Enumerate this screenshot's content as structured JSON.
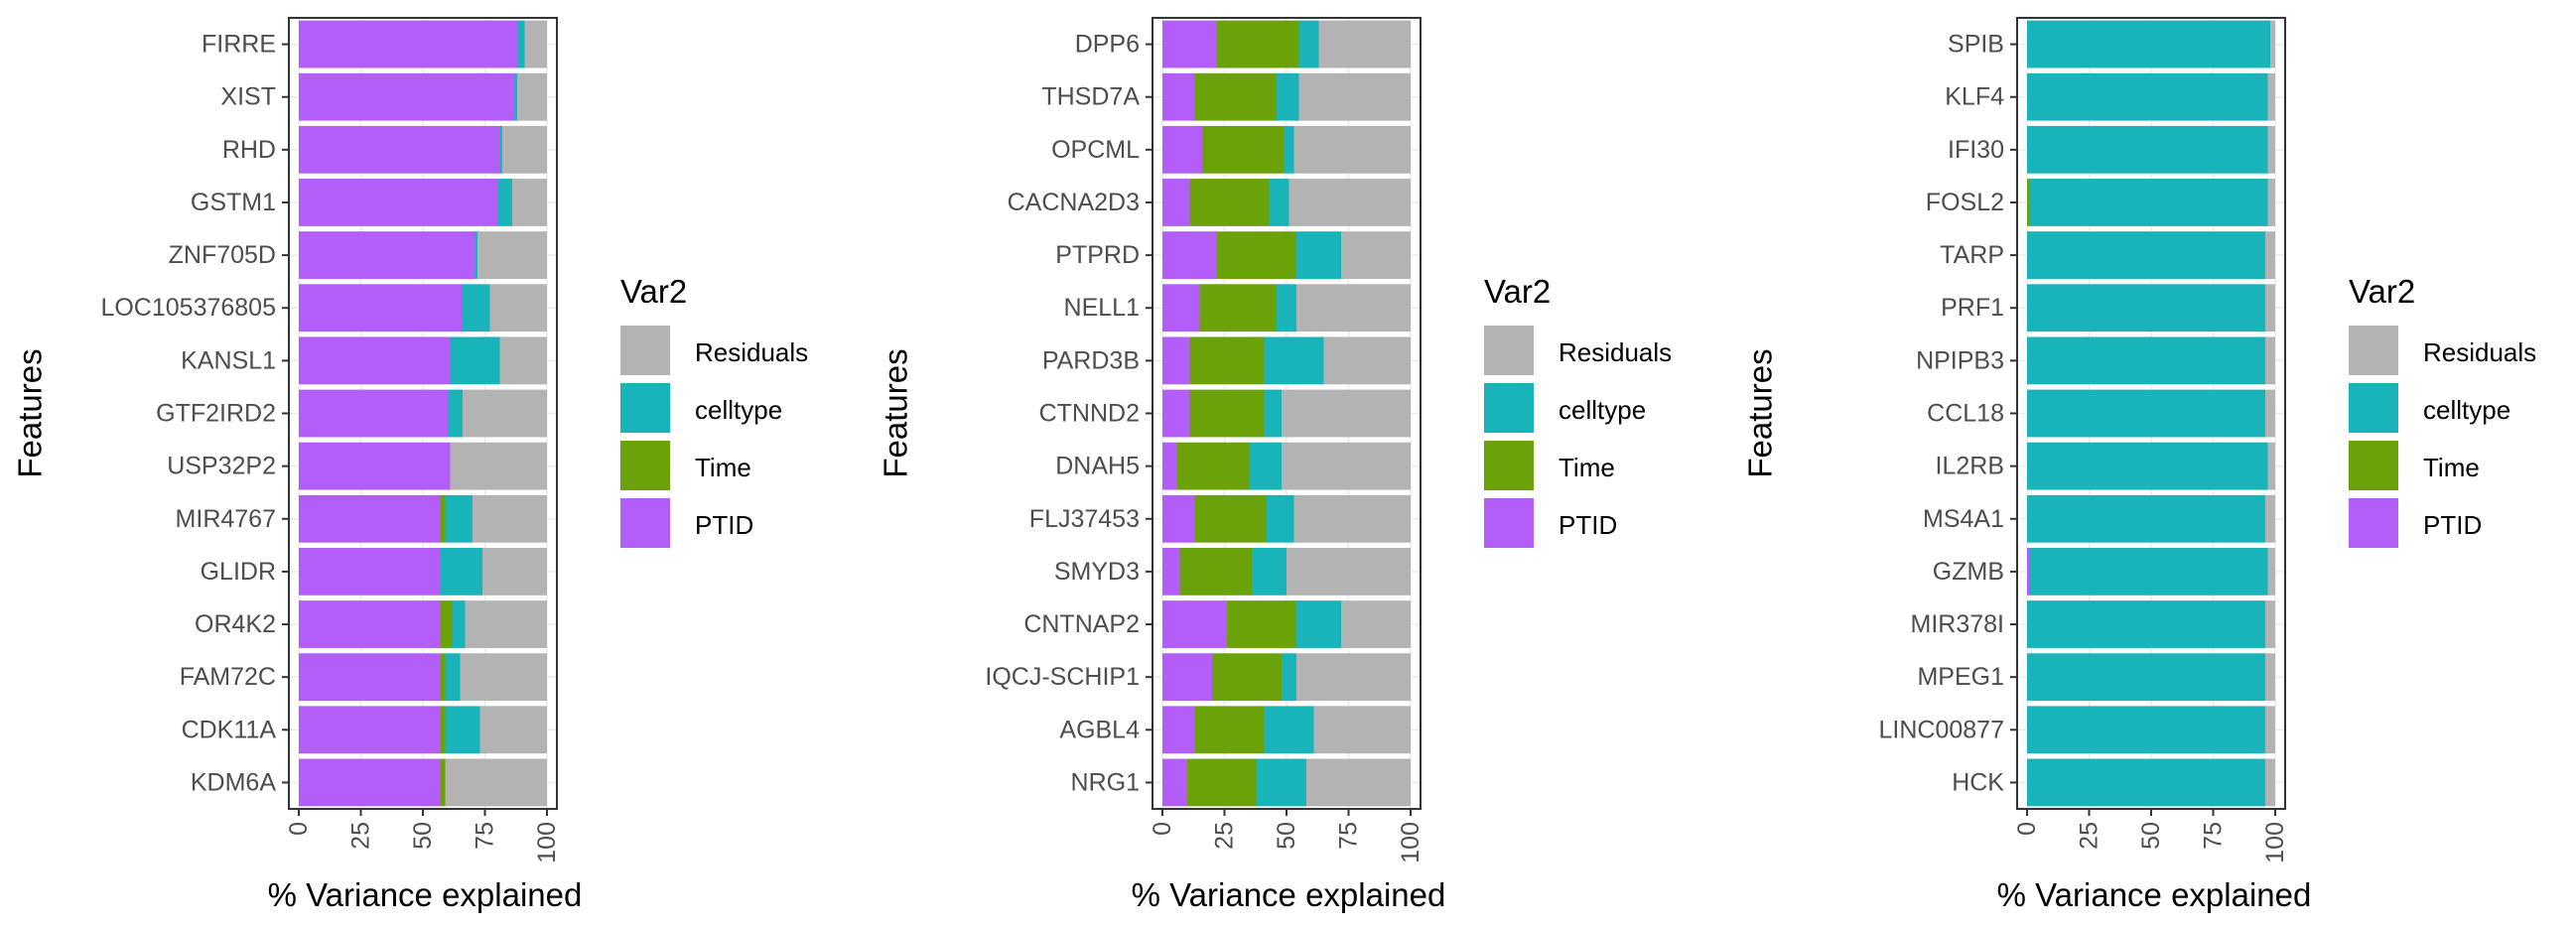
{
  "legend_title": "Var2",
  "legend_entries": [
    {
      "key": "Residuals",
      "label": "Residuals",
      "color": "#B3B3B3"
    },
    {
      "key": "celltype",
      "label": "celltype",
      "color": "#19B4B9"
    },
    {
      "key": "Time",
      "label": "Time",
      "color": "#6BA20A"
    },
    {
      "key": "PTID",
      "label": "PTID",
      "color": "#B45EFA"
    }
  ],
  "stack_order": [
    "PTID",
    "Time",
    "celltype",
    "Residuals"
  ],
  "chart_data": [
    {
      "type": "bar",
      "orientation": "horizontal",
      "stacked": true,
      "xlabel": "% Variance explained",
      "ylabel": "Features",
      "xlim": [
        0,
        100
      ],
      "xticks": [
        "0",
        "25",
        "50",
        "75",
        "100"
      ],
      "legend_position": "right",
      "categories": [
        "FIRRE",
        "XIST",
        "RHD",
        "GSTM1",
        "ZNF705D",
        "LOC105376805",
        "KANSL1",
        "GTF2IRD2",
        "USP32P2",
        "MIR4767",
        "GLIDR",
        "OR4K2",
        "FAM72C",
        "CDK11A",
        "KDM6A"
      ],
      "series": [
        {
          "name": "PTID",
          "values": [
            88,
            87,
            81,
            80,
            71,
            66,
            61,
            60,
            61,
            57,
            57,
            57,
            57,
            57,
            57
          ]
        },
        {
          "name": "Time",
          "values": [
            0,
            0,
            0,
            0,
            0,
            0,
            0,
            0,
            0,
            2,
            0,
            5,
            2,
            2,
            2
          ]
        },
        {
          "name": "celltype",
          "values": [
            3,
            1,
            1,
            6,
            1,
            11,
            20,
            6,
            0,
            11,
            17,
            5,
            6,
            14,
            0
          ]
        },
        {
          "name": "Residuals",
          "values": [
            9,
            12,
            18,
            14,
            28,
            23,
            19,
            34,
            39,
            30,
            26,
            33,
            35,
            27,
            41
          ]
        }
      ]
    },
    {
      "type": "bar",
      "orientation": "horizontal",
      "stacked": true,
      "xlabel": "% Variance explained",
      "ylabel": "Features",
      "xlim": [
        0,
        100
      ],
      "xticks": [
        "0",
        "25",
        "50",
        "75",
        "100"
      ],
      "legend_position": "right",
      "categories": [
        "DPP6",
        "THSD7A",
        "OPCML",
        "CACNA2D3",
        "PTPRD",
        "NELL1",
        "PARD3B",
        "CTNND2",
        "DNAH5",
        "FLJ37453",
        "SMYD3",
        "CNTNAP2",
        "IQCJ-SCHIP1",
        "AGBL4",
        "NRG1"
      ],
      "series": [
        {
          "name": "PTID",
          "values": [
            22,
            13,
            16,
            11,
            22,
            15,
            11,
            11,
            6,
            13,
            7,
            26,
            20,
            13,
            10
          ]
        },
        {
          "name": "Time",
          "values": [
            33,
            33,
            33,
            32,
            32,
            31,
            30,
            30,
            29,
            29,
            29,
            28,
            28,
            28,
            28
          ]
        },
        {
          "name": "celltype",
          "values": [
            8,
            9,
            4,
            8,
            18,
            8,
            24,
            7,
            13,
            11,
            14,
            18,
            6,
            20,
            20
          ]
        },
        {
          "name": "Residuals",
          "values": [
            37,
            45,
            47,
            49,
            28,
            46,
            35,
            52,
            52,
            47,
            50,
            28,
            46,
            39,
            42
          ]
        }
      ]
    },
    {
      "type": "bar",
      "orientation": "horizontal",
      "stacked": true,
      "xlabel": "% Variance explained",
      "ylabel": "Features",
      "xlim": [
        0,
        100
      ],
      "xticks": [
        "0",
        "25",
        "50",
        "75",
        "100"
      ],
      "legend_position": "right",
      "categories": [
        "SPIB",
        "KLF4",
        "IFI30",
        "FOSL2",
        "TARP",
        "PRF1",
        "NPIPB3",
        "CCL18",
        "IL2RB",
        "MS4A1",
        "GZMB",
        "MIR378I",
        "MPEG1",
        "LINC00877",
        "HCK"
      ],
      "series": [
        {
          "name": "PTID",
          "values": [
            0,
            0,
            0,
            0,
            0,
            0,
            0,
            0,
            0,
            0,
            1,
            0,
            0,
            0,
            0
          ]
        },
        {
          "name": "Time",
          "values": [
            0,
            0,
            0,
            1,
            0,
            0,
            0,
            0,
            0,
            0,
            0,
            0,
            0,
            0,
            0
          ]
        },
        {
          "name": "celltype",
          "values": [
            98,
            97,
            97,
            96,
            96,
            96,
            96,
            96,
            97,
            96,
            96,
            96,
            96,
            96,
            96
          ]
        },
        {
          "name": "Residuals",
          "values": [
            2,
            3,
            3,
            3,
            4,
            4,
            4,
            4,
            3,
            4,
            3,
            4,
            4,
            4,
            4
          ]
        }
      ]
    }
  ]
}
